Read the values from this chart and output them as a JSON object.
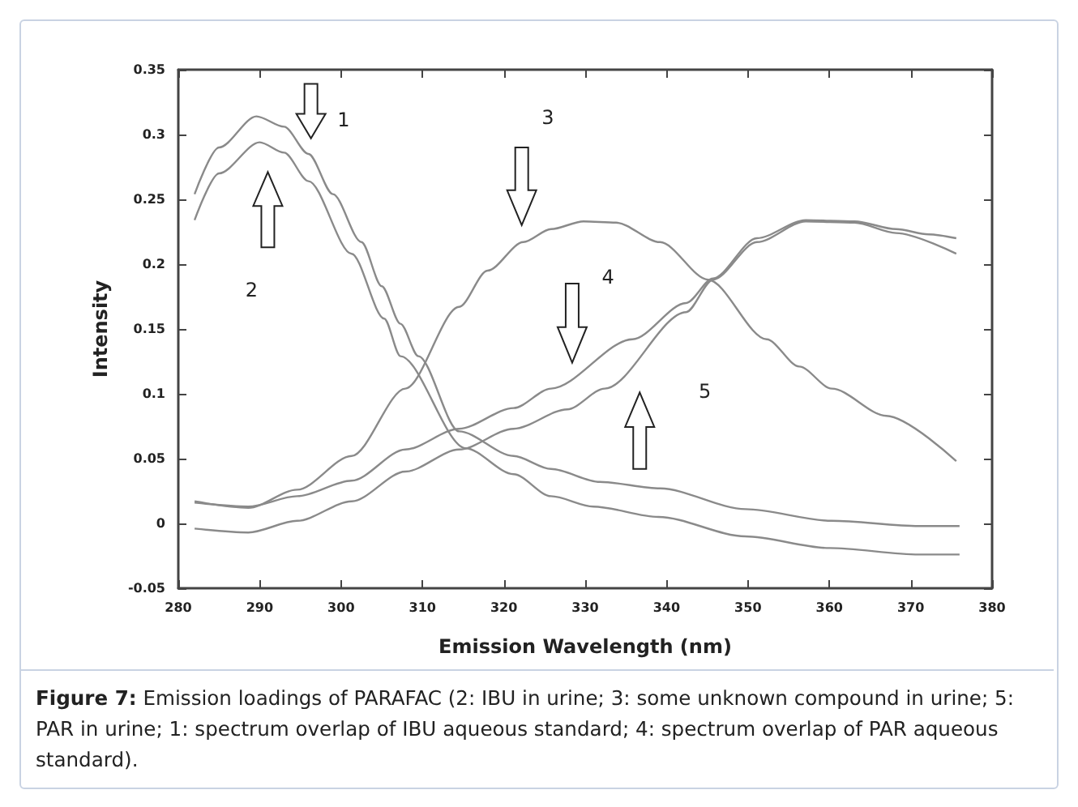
{
  "chart_data": {
    "type": "line",
    "xlabel": "Emission Wavelength (nm)",
    "ylabel": "Intensity",
    "xlim": [
      280,
      380
    ],
    "xticks": [
      280,
      290,
      300,
      310,
      320,
      330,
      340,
      350,
      360,
      370,
      380
    ],
    "ylim": [
      -0.05,
      0.35
    ],
    "yticks": [
      -0.05,
      0,
      0.05,
      0.1,
      0.15,
      0.2,
      0.25,
      0.3,
      0.35
    ],
    "marker": "none",
    "line_style": "solid",
    "series": [
      {
        "color": "#8a8a8a",
        "x": [
          282,
          285,
          289.6,
          293,
          296,
          299,
          302.5,
          305,
          307.3,
          309.5,
          314.5,
          321.2,
          325.8,
          331.8,
          339.2,
          349.7,
          360.3,
          371,
          376
        ],
        "values": [
          0.254,
          0.29,
          0.314,
          0.306,
          0.285,
          0.254,
          0.217,
          0.183,
          0.154,
          0.129,
          0.071,
          0.052,
          0.042,
          0.032,
          0.027,
          0.011,
          0.002,
          -0.002,
          -0.002
        ]
      },
      {
        "color": "#8a8a8a",
        "x": [
          282,
          285,
          290,
          293,
          296,
          301.3,
          305.3,
          307.3,
          315.3,
          321.2,
          325.8,
          331,
          339,
          349.7,
          360,
          371,
          376
        ],
        "values": [
          0.234,
          0.27,
          0.294,
          0.286,
          0.264,
          0.208,
          0.158,
          0.129,
          0.058,
          0.038,
          0.021,
          0.013,
          0.005,
          -0.01,
          -0.019,
          -0.024,
          -0.024
        ]
      },
      {
        "color": "#8a8a8a",
        "x": [
          282,
          288.6,
          294.6,
          301.3,
          307.9,
          314.5,
          318,
          322.4,
          325.8,
          329.8,
          333.8,
          339.2,
          345.1,
          352.3,
          356.3,
          360.3,
          367,
          375.6
        ],
        "values": [
          0.017,
          0.012,
          0.026,
          0.052,
          0.104,
          0.167,
          0.195,
          0.217,
          0.227,
          0.233,
          0.232,
          0.217,
          0.188,
          0.142,
          0.121,
          0.104,
          0.083,
          0.048
        ]
      },
      {
        "color": "#8a8a8a",
        "x": [
          282,
          288.6,
          294.6,
          301.3,
          307.9,
          314.5,
          321.2,
          325.8,
          335.8,
          342.4,
          345.7,
          351.1,
          357.1,
          363.1,
          368.2,
          372.2,
          375.6
        ],
        "values": [
          0.016,
          0.013,
          0.021,
          0.033,
          0.057,
          0.073,
          0.089,
          0.104,
          0.142,
          0.17,
          0.189,
          0.22,
          0.234,
          0.233,
          0.227,
          0.223,
          0.22
        ]
      },
      {
        "color": "#8a8a8a",
        "x": [
          282,
          288.6,
          294.6,
          301.3,
          307.9,
          314.5,
          321.2,
          327.8,
          332.4,
          342.4,
          345.7,
          351.1,
          357.1,
          363.1,
          368.2,
          375.6
        ],
        "values": [
          -0.004,
          -0.007,
          0.002,
          0.017,
          0.04,
          0.057,
          0.073,
          0.088,
          0.104,
          0.163,
          0.188,
          0.217,
          0.233,
          0.232,
          0.224,
          0.208
        ]
      }
    ],
    "annotations": [
      "1",
      "2",
      "3",
      "4",
      "5",
      "Figure 7: Emission loadings of PARAFAC (2: IBU in urine; 3: some unknown compound in urine; 5: PAR in urine; 1: spectrum overlap of IBU aqueous standard; 4: spectrum overlap of PAR aqueous standard)."
    ]
  }
}
